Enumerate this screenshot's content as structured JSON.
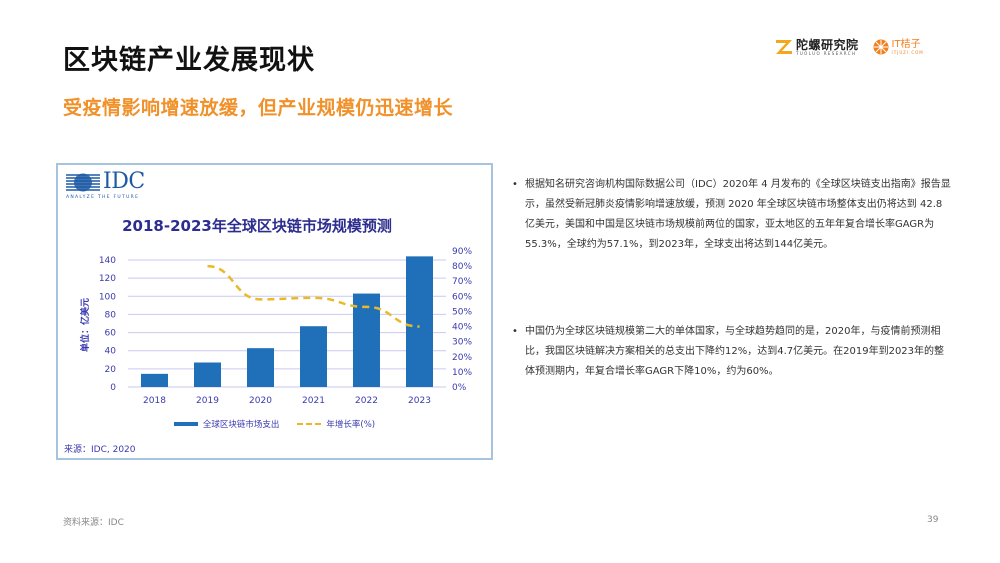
{
  "slide": {
    "title": "区块链产业发展现状",
    "subtitle": "受疫情影响增速放缓，但产业规模仍迅速增长",
    "page_number": "39",
    "footer_source": "资料来源：IDC"
  },
  "logos": {
    "tuoluo_cn": "陀螺研究院",
    "tuoluo_en": "TUOLUO RESEARCH",
    "it_cn": "IT桔子",
    "it_en": "ITJUZI.COM"
  },
  "idc": {
    "brand": "IDC",
    "tagline": "ANALYZE THE FUTURE"
  },
  "bullets": [
    {
      "text": "根据知名研究咨询机构国际数据公司（IDC）2020年 4 月发布的《全球区块链支出指南》报告显示，虽然受新冠肺炎疫情影响增速放缓，预测 2020 年全球区块链市场整体支出仍将达到 42.8 亿美元，美国和中国是区块链市场规模前两位的国家，亚太地区的五年年复合增长率GAGR为55.3%，全球约为57.1%，到2023年，全球支出将达到144亿美元。"
    },
    {
      "text": "中国仍为全球区块链规模第二大的单体国家，与全球趋势趋同的是，2020年，与疫情前预测相比，我国区块链解决方案相关的总支出下降约12%，达到4.7亿美元。在2019年到2023年的整体预测期内，年复合增长率GAGR下降10%，约为60%。"
    }
  ],
  "chart_data": {
    "type": "bar",
    "title": "2018-2023年全球区块链市场规模预测",
    "categories": [
      "2018",
      "2019",
      "2020",
      "2021",
      "2022",
      "2023"
    ],
    "series": [
      {
        "name": "全球区块链市场支出",
        "type": "bar",
        "axis": "left",
        "color": "#1f6fb9",
        "values": [
          14.5,
          27,
          42.8,
          67,
          103,
          144
        ]
      },
      {
        "name": "年增长率(%)",
        "type": "line",
        "style": "dashed",
        "axis": "right",
        "color": "#e9b92a",
        "values": [
          null,
          80,
          58,
          59,
          53,
          40
        ]
      }
    ],
    "ylabel": "单位：亿美元",
    "ylim": [
      0,
      140
    ],
    "yticks": [
      "0",
      "20",
      "40",
      "60",
      "80",
      "100",
      "120",
      "140"
    ],
    "y2lim": [
      0,
      90
    ],
    "y2ticks": [
      "0%",
      "10%",
      "20%",
      "30%",
      "40%",
      "50%",
      "60%",
      "70%",
      "80%",
      "90%"
    ],
    "xlabel": "",
    "grid": true,
    "legend_position": "bottom",
    "source": "来源：IDC, 2020"
  }
}
